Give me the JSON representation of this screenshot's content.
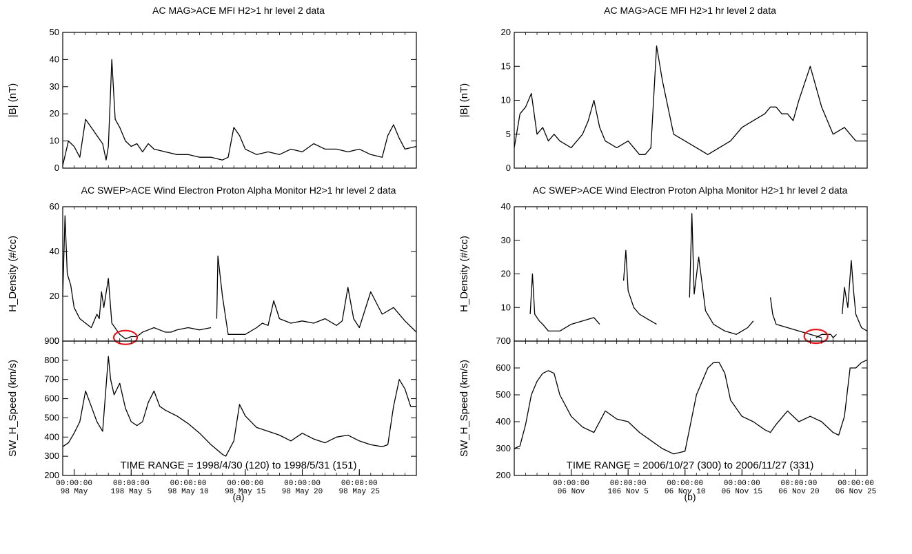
{
  "figure": {
    "panel_a": {
      "caption": "(a)",
      "time_range": "TIME RANGE = 1998/4/30 (120) to 1998/5/31 (151)",
      "mag_title": "AC  MAG>ACE MFI H2>1 hr level 2 data",
      "swep_title": "AC  SWEP>ACE Wind Electron Proton Alpha Monitor  H2>1 hr level 2 data"
    },
    "panel_b": {
      "caption": "(b)",
      "time_range": "TIME RANGE = 2006/10/27 (300) to 2006/11/27 (331)",
      "mag_title": "AC  MAG>ACE MFI H2>1 hr level 2 data",
      "swep_title": "AC  SWEP>ACE Wind Electron Proton Alpha Monitor  H2>1 hr level 2 data"
    },
    "highlight_color": "#e8141b",
    "line_color": "#000000"
  },
  "chart_data": [
    {
      "type": "line",
      "panel": "a",
      "ylabel": "|B| (nT)",
      "xlim": [
        0,
        31
      ],
      "ylim": [
        0,
        50
      ],
      "yticks": [
        0,
        10,
        20,
        30,
        40,
        50
      ],
      "x": [
        0,
        0.5,
        1,
        1.5,
        2,
        2.5,
        3,
        3.5,
        3.8,
        4.0,
        4.3,
        4.6,
        5,
        5.5,
        6,
        6.5,
        7,
        7.5,
        8,
        9,
        10,
        11,
        12,
        13,
        14,
        14.5,
        15,
        15.5,
        16,
        16.5,
        17,
        18,
        19,
        20,
        21,
        22,
        23,
        24,
        25,
        26,
        27,
        28,
        28.5,
        29,
        29.5,
        30,
        31
      ],
      "y": [
        1,
        10,
        8,
        4,
        18,
        15,
        12,
        9,
        3,
        8,
        40,
        18,
        15,
        10,
        8,
        9,
        6,
        9,
        7,
        6,
        5,
        5,
        4,
        4,
        3,
        4,
        15,
        12,
        7,
        6,
        5,
        6,
        5,
        7,
        6,
        9,
        7,
        7,
        6,
        7,
        5,
        4,
        12,
        16,
        11,
        7,
        8
      ]
    },
    {
      "type": "line",
      "panel": "a",
      "ylabel": "H_Density (#/cc)",
      "xlim": [
        0,
        31
      ],
      "ylim": [
        0,
        60
      ],
      "yticks": [
        0,
        20,
        40,
        60
      ],
      "x": [
        0,
        0.2,
        0.4,
        0.7,
        1,
        1.5,
        2,
        2.5,
        3,
        3.2,
        3.4,
        3.6,
        4,
        4.3,
        5,
        5.5,
        6,
        6.5,
        7,
        7.5,
        8,
        8.5,
        9,
        9.5,
        10,
        11,
        12,
        13
      ],
      "y": [
        20,
        56,
        30,
        25,
        15,
        10,
        8,
        6,
        12,
        10,
        22,
        15,
        28,
        8,
        3,
        1,
        2,
        2,
        4,
        5,
        6,
        5,
        4,
        4,
        5,
        6,
        5,
        6
      ],
      "x2": [
        13.5,
        13.6,
        14,
        14.5,
        15,
        16,
        17,
        17.5,
        18,
        18.5,
        19,
        20,
        21,
        22,
        23,
        24,
        24.5,
        25,
        25.5,
        26,
        27,
        28,
        29,
        30,
        31
      ],
      "y2": [
        10,
        38,
        20,
        3,
        3,
        3,
        6,
        8,
        7,
        18,
        10,
        8,
        9,
        8,
        10,
        7,
        9,
        24,
        10,
        6,
        22,
        12,
        15,
        9,
        4
      ],
      "annotations": [
        {
          "type": "ellipse",
          "x": 5.5,
          "y": 1
        }
      ]
    },
    {
      "type": "line",
      "panel": "a",
      "ylabel": "SW_H_Speed (km/s)",
      "xlim": [
        0,
        31
      ],
      "ylim": [
        200,
        900
      ],
      "yticks": [
        200,
        300,
        400,
        500,
        600,
        700,
        800,
        900
      ],
      "x": [
        0,
        0.5,
        1,
        1.5,
        2,
        2.5,
        3,
        3.5,
        4,
        4.2,
        4.5,
        5,
        5.5,
        6,
        6.5,
        7,
        7.5,
        8,
        8.5,
        9,
        10,
        11,
        12,
        13,
        14,
        14.3,
        15,
        15.5,
        16,
        17,
        18,
        19,
        20,
        21,
        22,
        23,
        24,
        25,
        26,
        27,
        28,
        28.5,
        29,
        29.5,
        30,
        30.5,
        31
      ],
      "y": [
        350,
        370,
        420,
        480,
        640,
        560,
        480,
        430,
        820,
        700,
        620,
        680,
        550,
        480,
        460,
        480,
        580,
        640,
        560,
        540,
        510,
        470,
        420,
        360,
        310,
        300,
        380,
        570,
        510,
        450,
        430,
        410,
        380,
        420,
        390,
        370,
        400,
        410,
        380,
        360,
        350,
        360,
        560,
        700,
        650,
        560,
        560
      ]
    },
    {
      "type": "line",
      "panel": "b",
      "ylabel": "|B| (nT)",
      "xlim": [
        0,
        31
      ],
      "ylim": [
        0,
        20
      ],
      "yticks": [
        0,
        5,
        10,
        15,
        20
      ],
      "x": [
        0,
        0.5,
        1,
        1.5,
        2,
        2.5,
        3,
        3.5,
        4,
        5,
        6,
        6.5,
        7,
        7.5,
        8,
        9,
        10,
        10.5,
        11,
        11.5,
        12,
        12.5,
        13,
        14,
        15,
        16,
        17,
        18,
        19,
        20,
        21,
        22,
        22.5,
        23,
        23.5,
        24,
        24.5,
        25,
        26,
        27,
        28,
        29,
        30,
        31
      ],
      "y": [
        3,
        8,
        9,
        11,
        5,
        6,
        4,
        5,
        4,
        3,
        5,
        7,
        10,
        6,
        4,
        3,
        4,
        3,
        2,
        2,
        3,
        18,
        13,
        5,
        4,
        3,
        2,
        3,
        4,
        6,
        7,
        8,
        9,
        9,
        8,
        8,
        7,
        10,
        15,
        9,
        5,
        6,
        4,
        4
      ]
    },
    {
      "type": "line",
      "panel": "b",
      "ylabel": "H_Density (#/cc)",
      "xlim": [
        0,
        31
      ],
      "ylim": [
        0,
        40
      ],
      "yticks": [
        0,
        10,
        20,
        30,
        40
      ],
      "x": [
        1.4,
        1.6,
        1.8,
        2.2,
        2.5,
        3,
        4,
        5,
        6,
        7,
        7.5
      ],
      "y": [
        8,
        20,
        8,
        6,
        5,
        3,
        3,
        5,
        6,
        7,
        5
      ],
      "x2": [
        9.6,
        9.8,
        10,
        10.5,
        11,
        11.5,
        12,
        12.5
      ],
      "y2": [
        18,
        27,
        15,
        10,
        8,
        7,
        6,
        5
      ],
      "x3": [
        15.4,
        15.6,
        15.8,
        16.2,
        16.8,
        17.5,
        18.5,
        19.5,
        20,
        20.5,
        21
      ],
      "y3": [
        13,
        38,
        14,
        25,
        9,
        5,
        3,
        2,
        3,
        4,
        6
      ],
      "x4": [
        22.5,
        22.7,
        23,
        24,
        25,
        26,
        27
      ],
      "y4": [
        13,
        8,
        5,
        4,
        3,
        2,
        1
      ],
      "x5": [
        26.5,
        27,
        27.5,
        27.8,
        28,
        28.3
      ],
      "y5": [
        1,
        2,
        2,
        2,
        1,
        2
      ],
      "x6": [
        28.8,
        29,
        29.3,
        29.6,
        29.8,
        30,
        30.5,
        31
      ],
      "y6": [
        8,
        16,
        10,
        24,
        15,
        8,
        4,
        3
      ],
      "annotations": [
        {
          "type": "ellipse",
          "x": 26.5,
          "y": 1
        }
      ]
    },
    {
      "type": "line",
      "panel": "b",
      "ylabel": "SW_H_Speed (km/s)",
      "xlim": [
        0,
        31
      ],
      "ylim": [
        200,
        700
      ],
      "yticks": [
        200,
        300,
        400,
        500,
        600,
        700
      ],
      "x": [
        0,
        0.5,
        1,
        1.5,
        2,
        2.5,
        3,
        3.5,
        4,
        5,
        6,
        7,
        8,
        9,
        10,
        11,
        12,
        13,
        14,
        15,
        16,
        17,
        17.5,
        18,
        18.5,
        19,
        20,
        21,
        22,
        22.5,
        23,
        24,
        25,
        26,
        27,
        28,
        28.5,
        29,
        29.5,
        30,
        30.5,
        31
      ],
      "y": [
        300,
        310,
        390,
        500,
        550,
        580,
        590,
        580,
        500,
        420,
        380,
        360,
        440,
        410,
        400,
        360,
        330,
        300,
        280,
        290,
        500,
        600,
        620,
        620,
        580,
        480,
        420,
        400,
        370,
        360,
        390,
        440,
        400,
        420,
        400,
        360,
        350,
        420,
        600,
        600,
        620,
        630
      ]
    }
  ]
}
